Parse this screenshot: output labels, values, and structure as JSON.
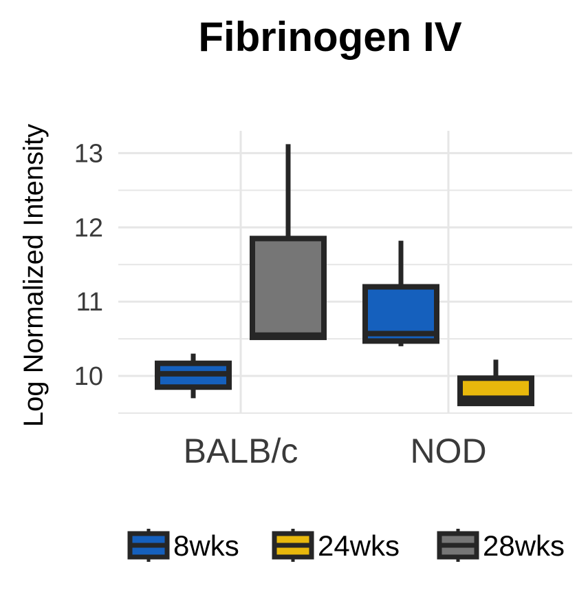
{
  "chart_data": {
    "type": "box",
    "title": "Fibrinogen IV",
    "ylabel": "Log Normalized Intensity",
    "xlabel": "",
    "categories": [
      "BALB/c",
      "NOD"
    ],
    "ylim": [
      9.5,
      13.3
    ],
    "yticks": [
      10,
      11,
      12,
      13
    ],
    "grid": true,
    "legend_position": "bottom",
    "series": [
      {
        "name": "8wks",
        "color": "#1560bd",
        "boxes": [
          {
            "category": "BALB/c",
            "min": 9.7,
            "q1": 9.85,
            "median": 10.03,
            "q3": 10.17,
            "max": 10.3
          },
          {
            "category": "NOD",
            "min": 10.4,
            "q1": 10.47,
            "median": 10.57,
            "q3": 11.2,
            "max": 11.82
          }
        ]
      },
      {
        "name": "24wks",
        "color": "#e8b80c",
        "boxes": [
          {
            "category": "NOD",
            "min": 9.6,
            "q1": 9.63,
            "median": 9.7,
            "q3": 9.97,
            "max": 10.22
          }
        ]
      },
      {
        "name": "28wks",
        "color": "#767676",
        "boxes": [
          {
            "category": "BALB/c",
            "min": 10.5,
            "q1": 10.52,
            "median": 10.55,
            "q3": 11.85,
            "max": 13.12
          }
        ]
      }
    ],
    "legend": [
      {
        "name": "8wks",
        "color": "#1560bd"
      },
      {
        "name": "24wks",
        "color": "#e8b80c"
      },
      {
        "name": "28wks",
        "color": "#767676"
      }
    ]
  }
}
